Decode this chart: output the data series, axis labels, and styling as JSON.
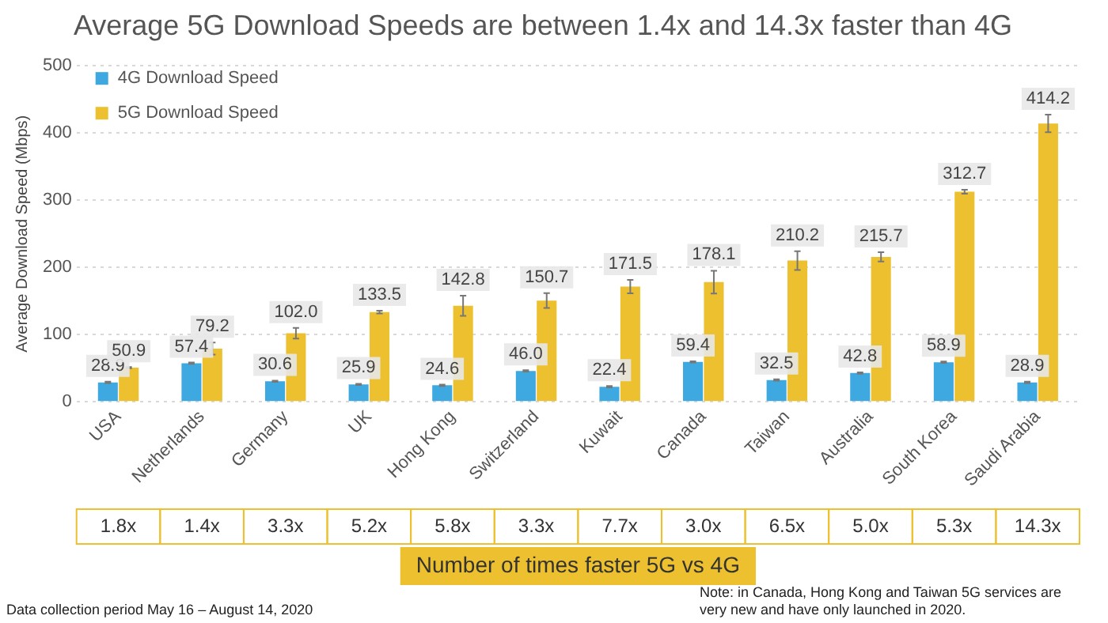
{
  "chart_data": {
    "type": "bar",
    "title": "Average 5G Download Speeds are between 1.4x and 14.3x faster than 4G",
    "ylabel": "Average Download Speed (Mbps)",
    "categories": [
      "USA",
      "Netherlands",
      "Germany",
      "UK",
      "Hong Kong",
      "Switzerland",
      "Kuwait",
      "Canada",
      "Taiwan",
      "Australia",
      "South Korea",
      "Saudi Arabia"
    ],
    "series": [
      {
        "name": "4G Download Speed",
        "color": "#3ea8e0",
        "values": [
          28.9,
          57.4,
          30.6,
          25.9,
          24.6,
          46.0,
          22.4,
          59.4,
          32.5,
          42.8,
          58.9,
          28.9
        ],
        "errors": [
          1,
          1,
          1,
          1,
          1,
          1,
          1,
          1,
          1,
          1,
          1,
          1
        ],
        "value_labels": [
          "28.9",
          "57.4",
          "30.6",
          "25.9",
          "24.6",
          "46.0",
          "22.4",
          "59.4",
          "32.5",
          "42.8",
          "58.9",
          "28.9"
        ]
      },
      {
        "name": "5G Download Speed",
        "color": "#ecc02e",
        "values": [
          50.9,
          79.2,
          102.0,
          133.5,
          142.8,
          150.7,
          171.5,
          178.1,
          210.2,
          215.7,
          312.7,
          414.2
        ],
        "errors": [
          1,
          9,
          8,
          2,
          15,
          11,
          10,
          17,
          14,
          7,
          3,
          13
        ],
        "value_labels": [
          "50.9",
          "79.2",
          "102.0",
          "133.5",
          "142.8",
          "150.7",
          "171.5",
          "178.1",
          "210.2",
          "215.7",
          "312.7",
          "414.2"
        ]
      }
    ],
    "ylim": [
      0,
      500
    ],
    "yticks": [
      0,
      100,
      200,
      300,
      400,
      500
    ],
    "grid": "y",
    "legend": "top left",
    "annotations": [
      "1.8x",
      "1.4x",
      "3.3x",
      "5.2x",
      "5.8x",
      "3.3x",
      "7.7x",
      "3.0x",
      "6.5x",
      "5.0x",
      "5.3x",
      "14.3x",
      "Number of times faster 5G vs 4G",
      "Data collection period May 16 – August 14, 2020",
      "Note: in Canada, Hong Kong and Taiwan 5G services are very new and have only launched in 2020."
    ]
  }
}
